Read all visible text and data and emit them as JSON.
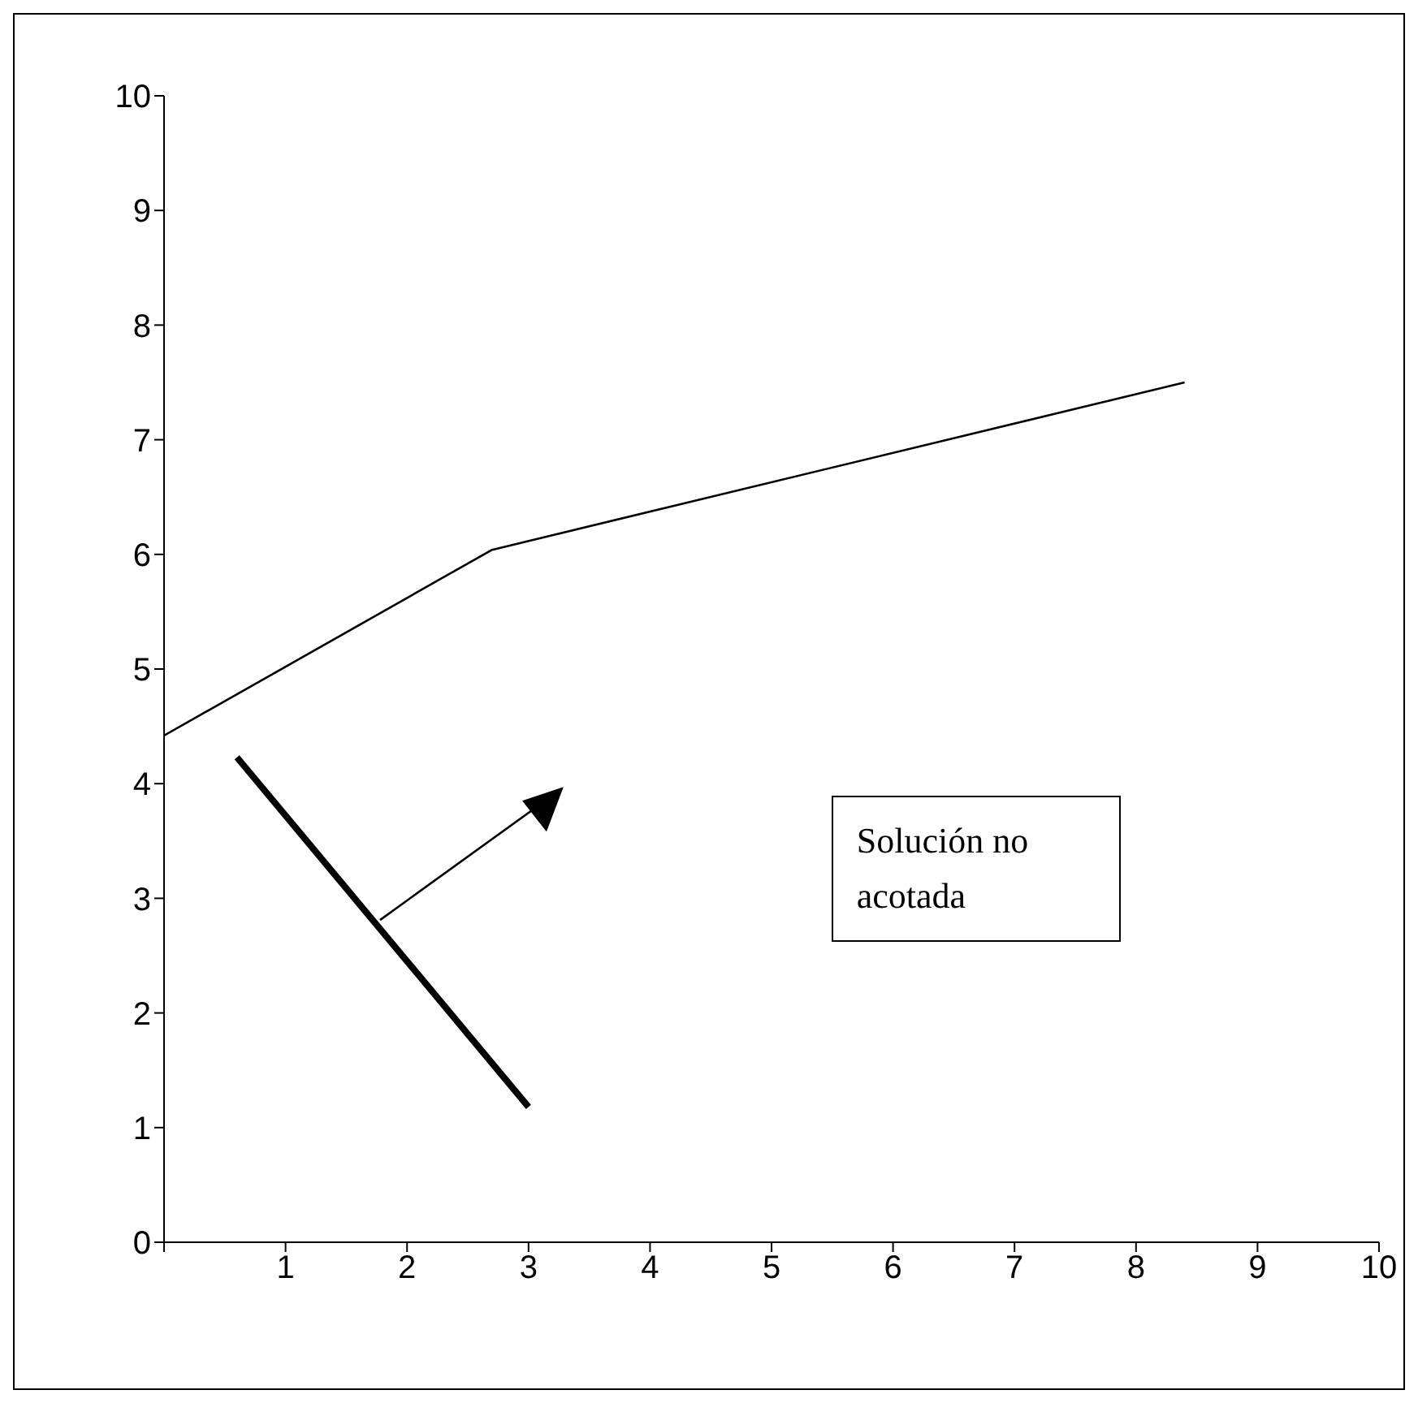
{
  "chart_data": {
    "type": "line",
    "series": [
      {
        "color": "#000000",
        "x": [
          0,
          2.7,
          8.4
        ],
        "values": [
          4.42,
          6.04,
          7.5
        ]
      },
      {
        "color": "#000000",
        "x": [
          0.6,
          3
        ],
        "values": [
          4.23,
          1.18
        ]
      }
    ],
    "xlim": [
      0,
      10
    ],
    "xticks": [
      {
        "value": 0,
        "label": null
      },
      1,
      2,
      3,
      4,
      5,
      6,
      7,
      8,
      9,
      10
    ],
    "ylim": [
      0,
      10
    ],
    "yticks": [
      0,
      1,
      2,
      3,
      4,
      5,
      6,
      7,
      8,
      9,
      10
    ],
    "marker": "none",
    "line_style": "solid",
    "annotations": [
      "Solución no acotada"
    ]
  }
}
